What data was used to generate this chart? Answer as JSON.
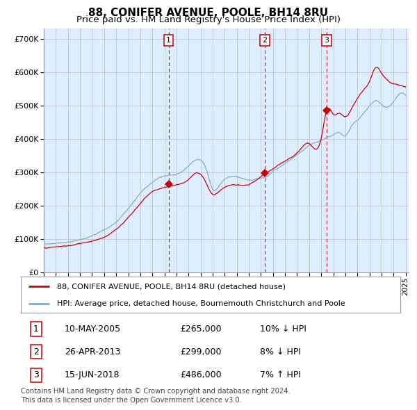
{
  "title": "88, CONIFER AVENUE, POOLE, BH14 8RU",
  "subtitle": "Price paid vs. HM Land Registry's House Price Index (HPI)",
  "title_fontsize": 11,
  "subtitle_fontsize": 9.5,
  "legend_line1": "88, CONIFER AVENUE, POOLE, BH14 8RU (detached house)",
  "legend_line2": "HPI: Average price, detached house, Bournemouth Christchurch and Poole",
  "sale_label_dates": [
    "10-MAY-2005",
    "26-APR-2013",
    "15-JUN-2018"
  ],
  "sale_price_strs": [
    "£265,000",
    "£299,000",
    "£486,000"
  ],
  "sale_hpi_strs": [
    "10% ↓ HPI",
    "8% ↓ HPI",
    "7% ↑ HPI"
  ],
  "footer_line1": "Contains HM Land Registry data © Crown copyright and database right 2024.",
  "footer_line2": "This data is licensed under the Open Government Licence v3.0.",
  "red_line_color": "#cc0000",
  "blue_line_color": "#88aacc",
  "bg_fill_color": "#ddeeff",
  "grid_color": "#bbbbcc",
  "box_color": "#cc0000",
  "ylim": [
    0,
    730000
  ],
  "yticks": [
    0,
    100000,
    200000,
    300000,
    400000,
    500000,
    600000,
    700000
  ],
  "ytick_labels": [
    "£0",
    "£100K",
    "£200K",
    "£300K",
    "£400K",
    "£500K",
    "£600K",
    "£700K"
  ],
  "sale_prices": [
    265000,
    299000,
    486000
  ],
  "sale_labels": [
    "1",
    "2",
    "3"
  ]
}
